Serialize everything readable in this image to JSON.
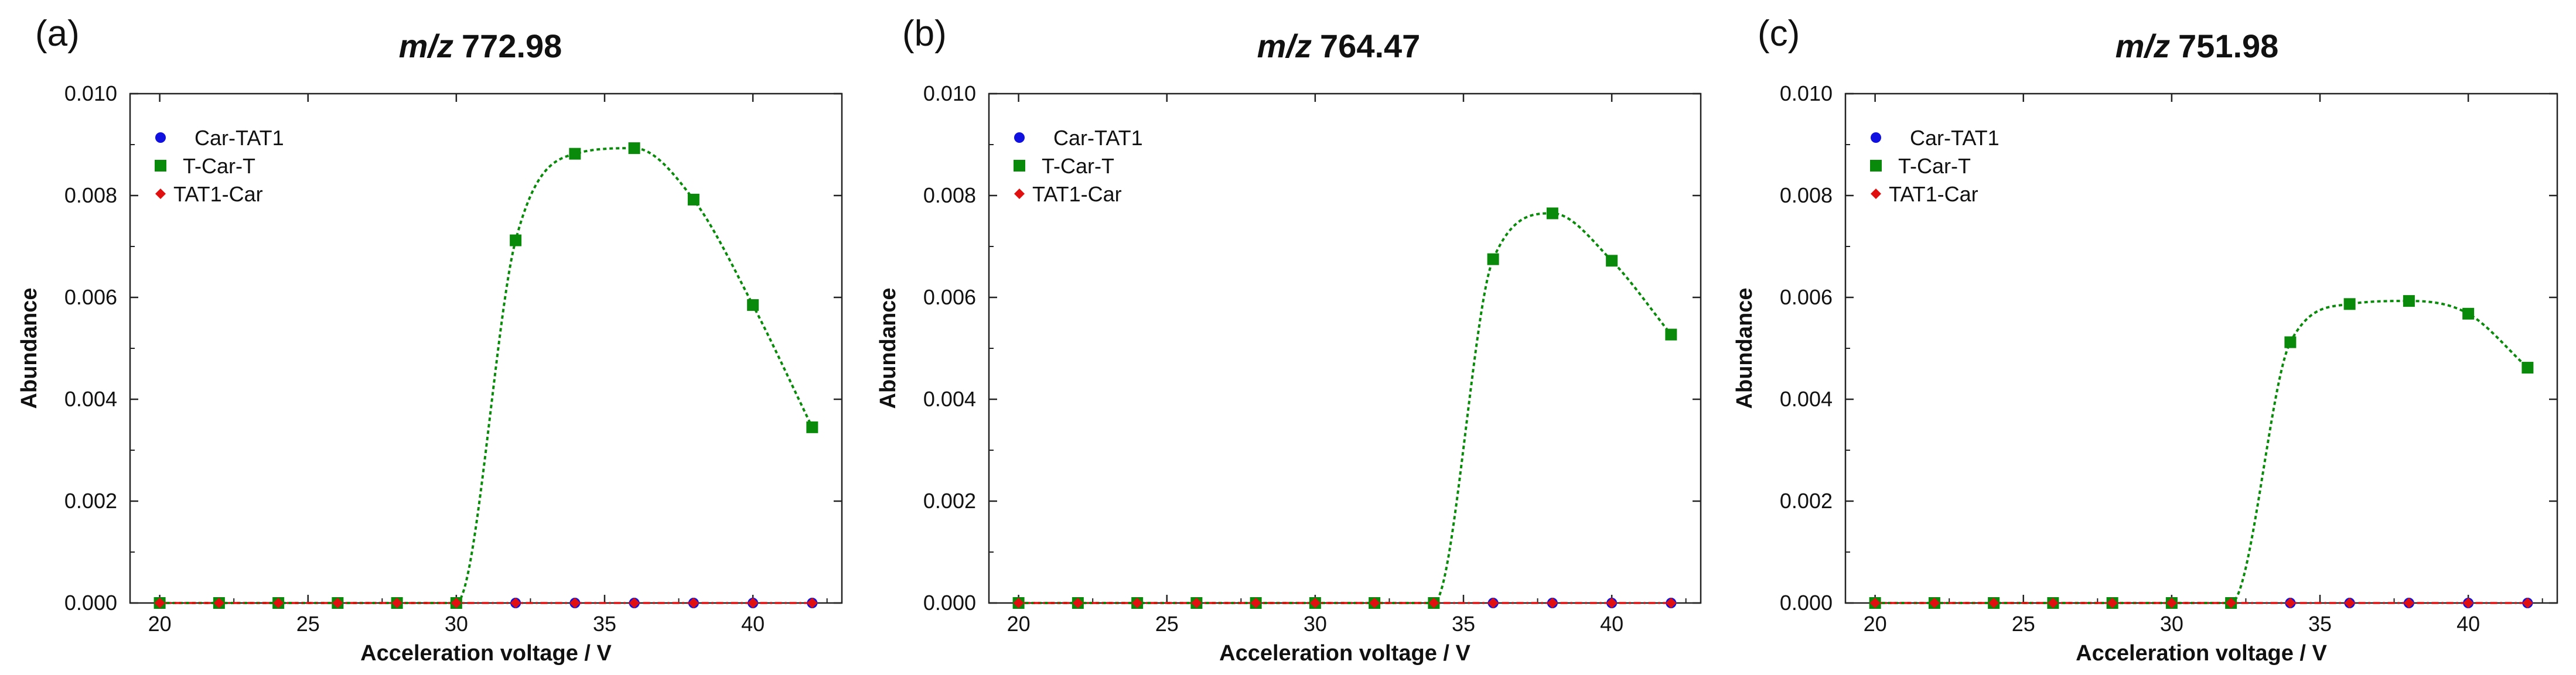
{
  "figure": {
    "background": "#ffffff"
  },
  "chart_data": [
    {
      "type": "line",
      "panel_label": "(a)",
      "title_prefix": "m/z",
      "title_value": "772.98",
      "xlabel": "Acceleration voltage / V",
      "ylabel": "Abundance",
      "xlim": [
        19,
        43
      ],
      "ylim": [
        0,
        0.01
      ],
      "xticks": [
        20,
        25,
        30,
        35,
        40
      ],
      "yticks": [
        0.0,
        0.002,
        0.004,
        0.006,
        0.008,
        0.01
      ],
      "ytick_labels": [
        "0.000",
        "0.002",
        "0.004",
        "0.006",
        "0.008",
        "0.010"
      ],
      "legend_position": "top-left",
      "series": [
        {
          "name": "Car-TAT1",
          "color": "#1010e0",
          "marker": "circle",
          "line": "none",
          "x": [
            20,
            22,
            24,
            26,
            28,
            30,
            32,
            34,
            36,
            38,
            40,
            42
          ],
          "y": [
            0,
            0,
            0,
            0,
            0,
            0,
            0,
            0,
            0,
            0,
            0,
            0
          ]
        },
        {
          "name": "T-Car-T",
          "color": "#0a8a0a",
          "marker": "square",
          "line": "dotted-smooth",
          "x": [
            20,
            22,
            24,
            26,
            28,
            30,
            32,
            34,
            36,
            38,
            40,
            42
          ],
          "y": [
            0,
            0,
            0,
            0,
            0,
            0,
            0.00712,
            0.00882,
            0.00893,
            0.00792,
            0.00585,
            0.00345
          ]
        },
        {
          "name": "TAT1-Car",
          "color": "#e01010",
          "marker": "diamond",
          "line": "dashdot",
          "x": [
            20,
            22,
            24,
            26,
            28,
            30,
            32,
            34,
            36,
            38,
            40,
            42
          ],
          "y": [
            0,
            0,
            0,
            0,
            0,
            0,
            0,
            0,
            0,
            0,
            0,
            0
          ]
        }
      ]
    },
    {
      "type": "line",
      "panel_label": "(b)",
      "title_prefix": "m/z",
      "title_value": "764.47",
      "xlabel": "Acceleration voltage / V",
      "ylabel": "Abundance",
      "xlim": [
        19,
        43
      ],
      "ylim": [
        0,
        0.01
      ],
      "xticks": [
        20,
        25,
        30,
        35,
        40
      ],
      "yticks": [
        0.0,
        0.002,
        0.004,
        0.006,
        0.008,
        0.01
      ],
      "ytick_labels": [
        "0.000",
        "0.002",
        "0.004",
        "0.006",
        "0.008",
        "0.010"
      ],
      "legend_position": "top-left",
      "series": [
        {
          "name": "Car-TAT1",
          "color": "#1010e0",
          "marker": "circle",
          "line": "none",
          "x": [
            20,
            22,
            24,
            26,
            28,
            30,
            32,
            34,
            36,
            38,
            40,
            42
          ],
          "y": [
            0,
            0,
            0,
            0,
            0,
            0,
            0,
            0,
            0,
            0,
            0,
            0
          ]
        },
        {
          "name": "T-Car-T",
          "color": "#0a8a0a",
          "marker": "square",
          "line": "dotted-smooth",
          "x": [
            20,
            22,
            24,
            26,
            28,
            30,
            32,
            34,
            36,
            38,
            40,
            42
          ],
          "y": [
            0,
            0,
            0,
            0,
            0,
            0,
            0,
            0,
            0.00675,
            0.00765,
            0.00672,
            0.00527
          ]
        },
        {
          "name": "TAT1-Car",
          "color": "#e01010",
          "marker": "diamond",
          "line": "dashdot",
          "x": [
            20,
            22,
            24,
            26,
            28,
            30,
            32,
            34,
            36,
            38,
            40,
            42
          ],
          "y": [
            0,
            0,
            0,
            0,
            0,
            0,
            0,
            0,
            0,
            0,
            0,
            0
          ]
        }
      ]
    },
    {
      "type": "line",
      "panel_label": "(c)",
      "title_prefix": "m/z",
      "title_value": "751.98",
      "xlabel": "Acceleration voltage / V",
      "ylabel": "Abundance",
      "xlim": [
        19,
        43
      ],
      "ylim": [
        0,
        0.01
      ],
      "xticks": [
        20,
        25,
        30,
        35,
        40
      ],
      "yticks": [
        0.0,
        0.002,
        0.004,
        0.006,
        0.008,
        0.01
      ],
      "ytick_labels": [
        "0.000",
        "0.002",
        "0.004",
        "0.006",
        "0.008",
        "0.010"
      ],
      "legend_position": "top-left",
      "series": [
        {
          "name": "Car-TAT1",
          "color": "#1010e0",
          "marker": "circle",
          "line": "none",
          "x": [
            20,
            22,
            24,
            26,
            28,
            30,
            32,
            34,
            36,
            38,
            40,
            42
          ],
          "y": [
            0,
            0,
            0,
            0,
            0,
            0,
            0,
            0,
            0,
            0,
            0,
            0
          ]
        },
        {
          "name": "T-Car-T",
          "color": "#0a8a0a",
          "marker": "square",
          "line": "dotted-smooth",
          "x": [
            20,
            22,
            24,
            26,
            28,
            30,
            32,
            34,
            36,
            38,
            40,
            42
          ],
          "y": [
            0,
            0,
            0,
            0,
            0,
            0,
            0,
            0.00512,
            0.00587,
            0.00593,
            0.00568,
            0.00462
          ]
        },
        {
          "name": "TAT1-Car",
          "color": "#e01010",
          "marker": "diamond",
          "line": "dashdot",
          "x": [
            20,
            22,
            24,
            26,
            28,
            30,
            32,
            34,
            36,
            38,
            40,
            42
          ],
          "y": [
            0,
            0,
            0,
            0,
            0,
            0,
            0,
            0,
            0,
            0,
            0,
            0
          ]
        }
      ]
    }
  ]
}
